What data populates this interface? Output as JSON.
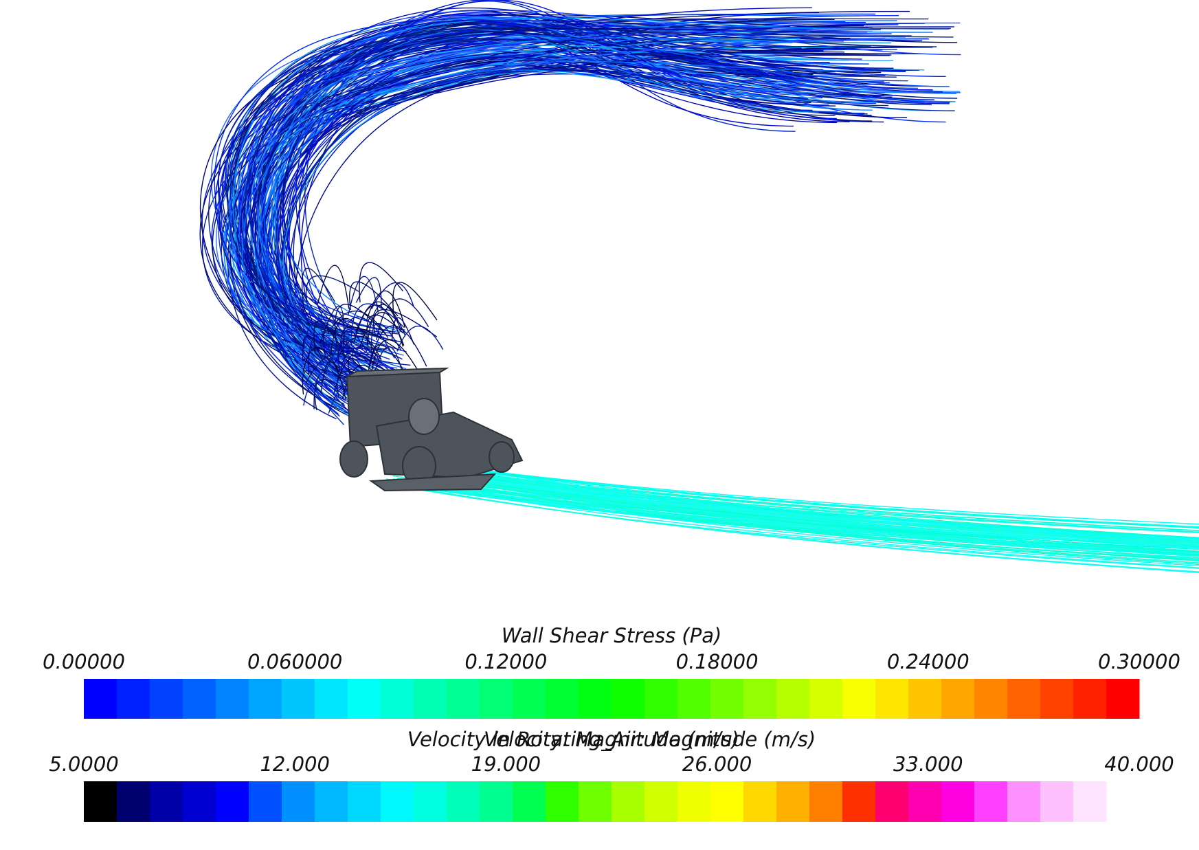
{
  "legends": [
    {
      "title": "Wall Shear Stress (Pa)",
      "labels": [
        "0.00000",
        "0.060000",
        "0.12000",
        "0.18000",
        "0.24000",
        "0.30000"
      ]
    },
    {
      "title": "Velocity: Magnitude (m/s)",
      "title_overlay": "Velocity in Rotating_Air: Magnitude (m/s)",
      "labels": [
        "5.0000",
        "12.000",
        "19.000",
        "26.000",
        "33.000",
        "40.000"
      ]
    }
  ]
}
